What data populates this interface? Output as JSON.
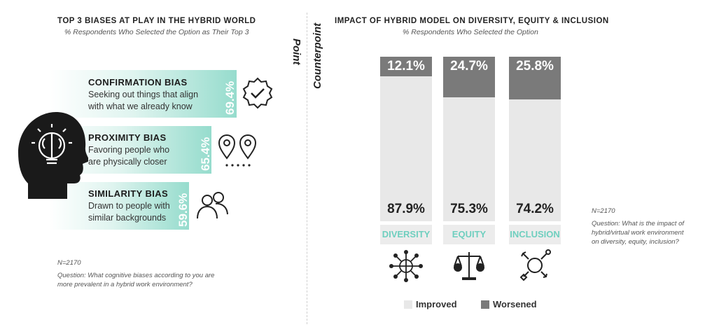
{
  "left": {
    "title": "TOP 3 BIASES AT PLAY IN THE HYBRID WORLD",
    "subtitle": "% Respondents Who Selected the Option as Their Top 3",
    "biases": [
      {
        "name": "CONFIRMATION BIAS",
        "desc1": "Seeking out things that align",
        "desc2": "with what we already know",
        "value": 69.4,
        "value_label": "69.4%"
      },
      {
        "name": "PROXIMITY BIAS",
        "desc1": "Favoring people who",
        "desc2": "are physically closer",
        "value": 65.4,
        "value_label": "65.4%"
      },
      {
        "name": "SIMILARITY BIAS",
        "desc1": "Drawn to people with",
        "desc2": "similar backgrounds",
        "value": 59.6,
        "value_label": "59.6%"
      }
    ],
    "n": "N=2170",
    "question1": "Question: What cognitive biases according to you are",
    "question2": "more prevalent in a hybrid work environment?"
  },
  "labels": {
    "point": "Point",
    "counterpoint": "Counterpoint"
  },
  "right": {
    "title": "IMPACT OF HYBRID MODEL ON DIVERSITY, EQUITY & INCLUSION",
    "subtitle": "% Respondents Who Selected the Option",
    "n": "N=2170",
    "question1": "Question: What is the impact of",
    "question2": "hybrid/virtual work environment",
    "question3": "on diversity, equity, inclusion?"
  },
  "chart_data": {
    "type": "bar",
    "stacked": true,
    "categories": [
      "DIVERSITY",
      "EQUITY",
      "INCLUSION"
    ],
    "series": [
      {
        "name": "Improved",
        "values": [
          87.9,
          75.3,
          74.2
        ],
        "labels": [
          "87.9%",
          "75.3%",
          "74.2%"
        ],
        "color": "#e8e8e8"
      },
      {
        "name": "Worsened",
        "values": [
          12.1,
          24.7,
          25.8
        ],
        "labels": [
          "12.1%",
          "24.7%",
          "25.8%"
        ],
        "color": "#7a7a7a"
      }
    ],
    "ylim": [
      0,
      100
    ],
    "legend": "bottom"
  },
  "colors": {
    "teal": "#6fcfbf",
    "improved": "#e8e8e8",
    "worsened": "#7a7a7a"
  },
  "icons": [
    "head-brain-icon",
    "checkmark-badge-icon",
    "location-pins-icon",
    "people-icon",
    "globe-network-icon",
    "scale-money-icon",
    "gender-symbols-icon"
  ]
}
